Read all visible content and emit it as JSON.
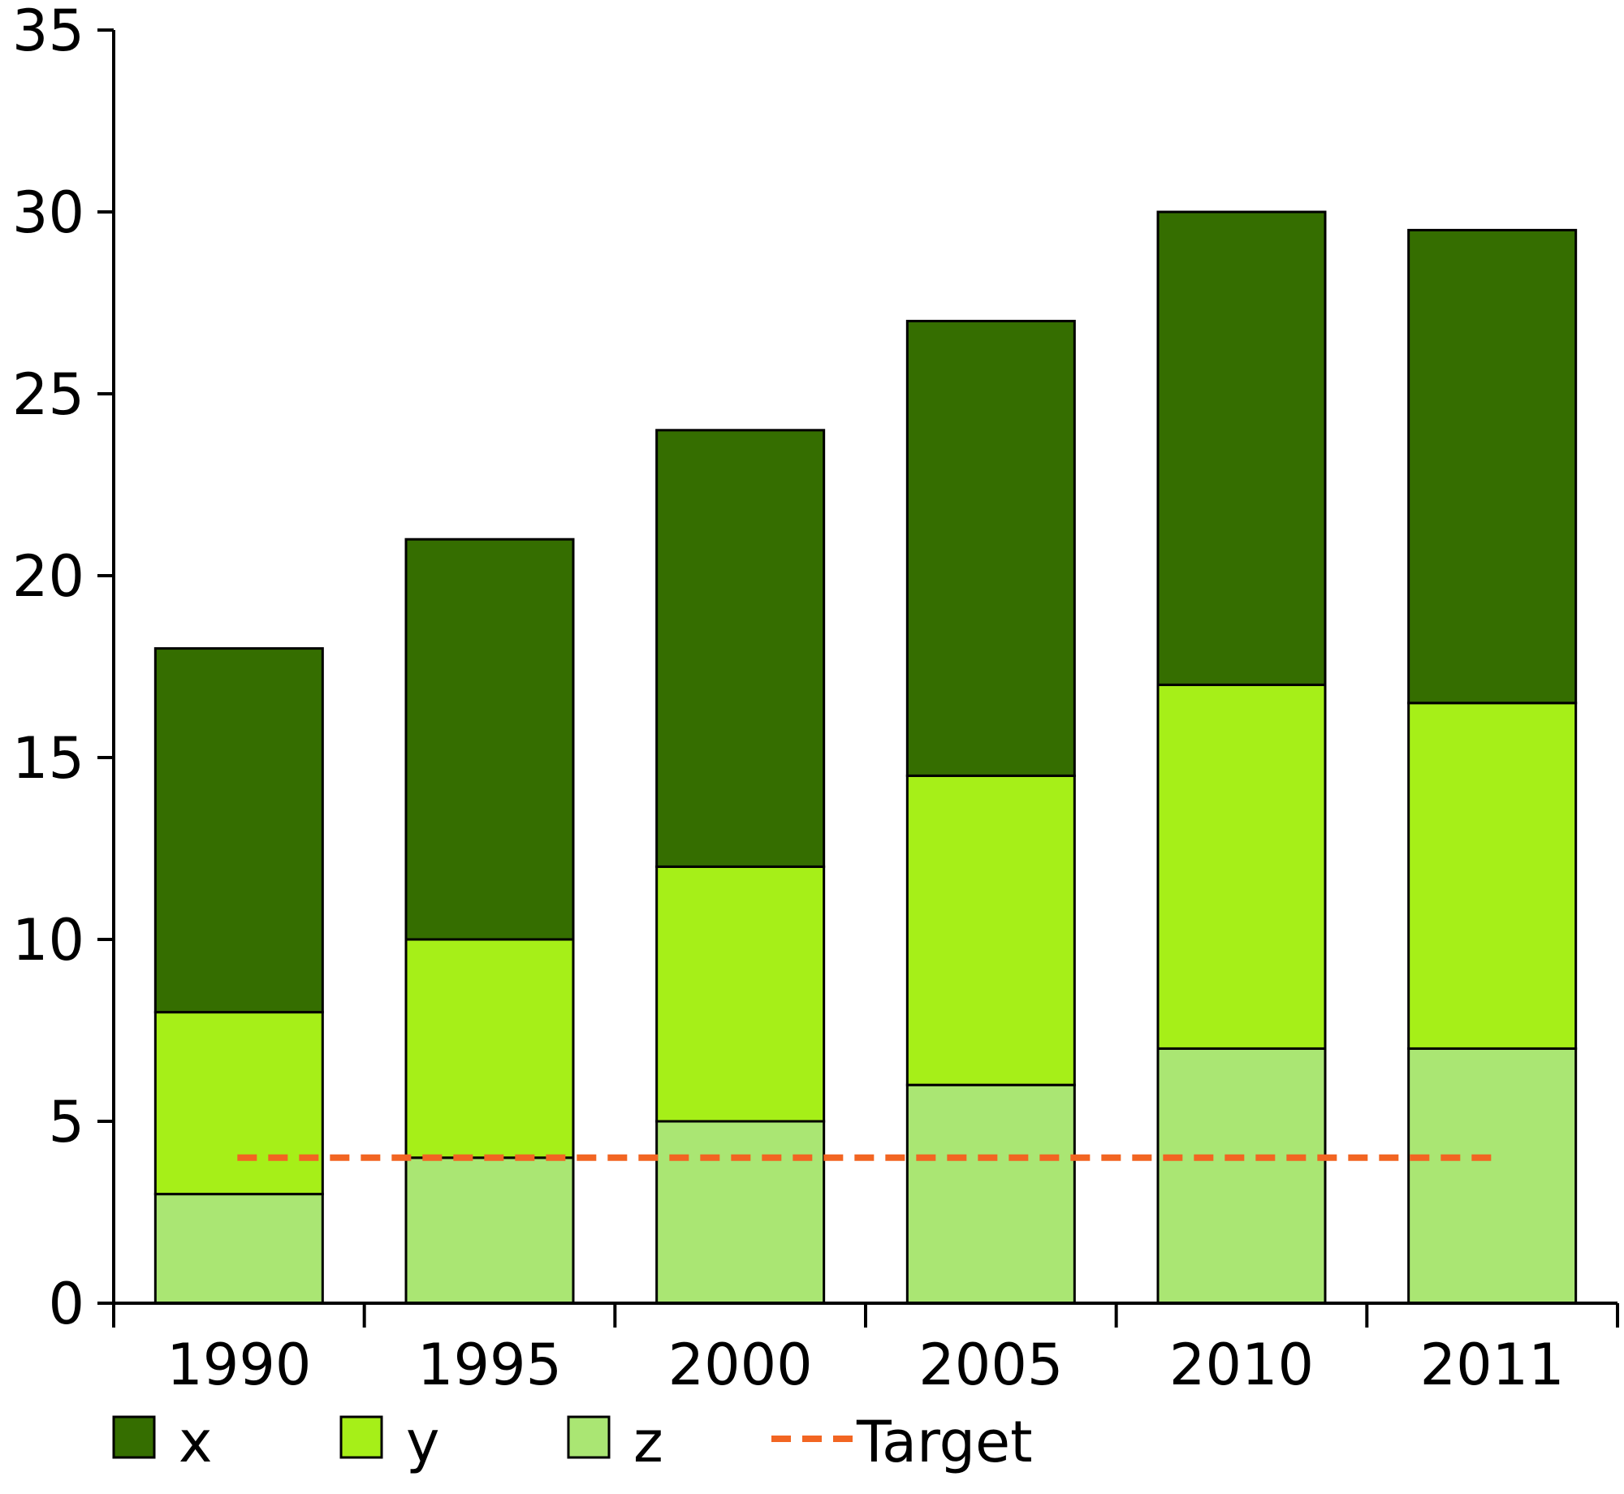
{
  "chart_data": {
    "type": "bar",
    "stacked": true,
    "categories": [
      "1990",
      "1995",
      "2000",
      "2005",
      "2010",
      "2011"
    ],
    "series": [
      {
        "name": "z",
        "color": "#aae673",
        "values": [
          3,
          4,
          5,
          6,
          7,
          7
        ]
      },
      {
        "name": "y",
        "color": "#a6ef18",
        "values": [
          5,
          6,
          7,
          8.5,
          10,
          9.5
        ]
      },
      {
        "name": "x",
        "color": "#356e00",
        "values": [
          10,
          11,
          12,
          12.5,
          13,
          13
        ]
      }
    ],
    "target": {
      "name": "Target",
      "value": 4,
      "color": "#f26522",
      "style": "dashed"
    },
    "ylim": [
      0,
      35
    ],
    "yticks": [
      0,
      5,
      10,
      15,
      20,
      25,
      30,
      35
    ],
    "title": "",
    "xlabel": "",
    "ylabel": "",
    "grid": false,
    "legend": {
      "placement": "bottom",
      "order": [
        "x",
        "y",
        "z",
        "Target"
      ]
    }
  }
}
